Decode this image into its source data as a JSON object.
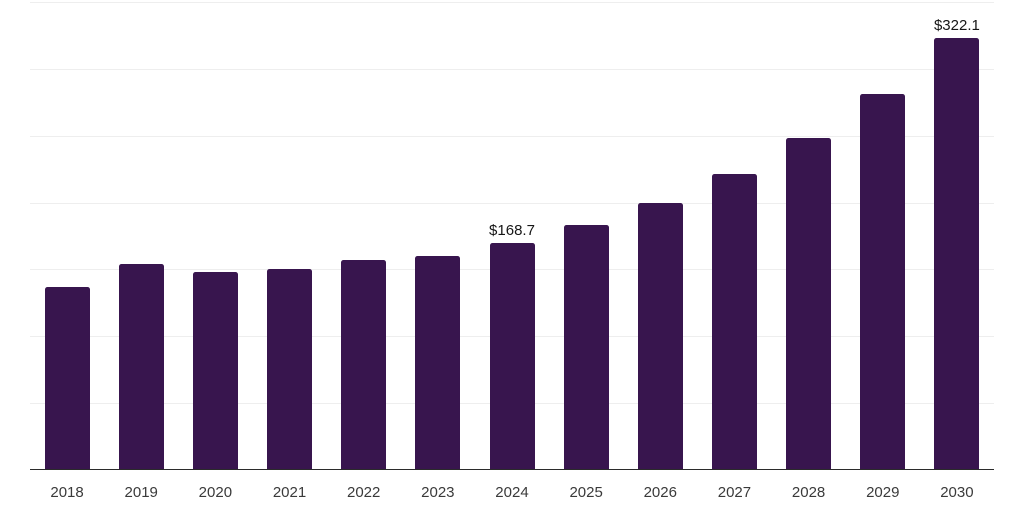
{
  "chart_data": {
    "type": "bar",
    "title": "",
    "xlabel": "",
    "ylabel": "",
    "categories": [
      "2018",
      "2019",
      "2020",
      "2021",
      "2022",
      "2023",
      "2024",
      "2025",
      "2026",
      "2027",
      "2028",
      "2029",
      "2030"
    ],
    "values": [
      135.4,
      152.8,
      146.6,
      148.9,
      155.6,
      158.9,
      168.7,
      182.4,
      198.8,
      220.1,
      247.4,
      280.2,
      322.1
    ],
    "data_labels": [
      "",
      "",
      "",
      "",
      "",
      "",
      "$168.7",
      "",
      "",
      "",
      "",
      "",
      "$322.1"
    ],
    "ylim": [
      0,
      350
    ],
    "grid_step": 50,
    "grid": "horizontal",
    "legend": "none",
    "y_tick_labels_visible": false,
    "colors": {
      "bar": "#38154e",
      "grid_line": "#eeeeee",
      "axis_line": "#2b2b2b",
      "tick_label": "#3a3a3a",
      "data_label": "#161616",
      "background": "#ffffff"
    }
  }
}
